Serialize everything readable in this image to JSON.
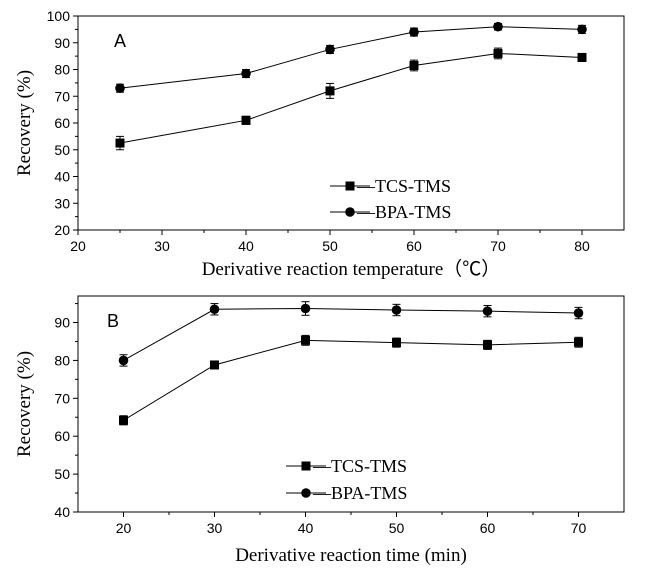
{
  "chart_data": [
    {
      "type": "line",
      "panel_label": "A",
      "xlabel": "Derivative reaction temperature（℃）",
      "ylabel": "Recovery (%)",
      "xlim": [
        20,
        85
      ],
      "ylim": [
        20,
        100
      ],
      "xticks": [
        20,
        30,
        40,
        50,
        60,
        70,
        80
      ],
      "yticks": [
        20,
        30,
        40,
        50,
        60,
        70,
        80,
        90,
        100
      ],
      "x": [
        25,
        40,
        50,
        60,
        70,
        80
      ],
      "series": [
        {
          "name": "TCS-TMS",
          "marker": "square",
          "values": [
            52.5,
            61,
            72,
            81.5,
            86,
            84.5
          ],
          "errors": [
            2.5,
            1.5,
            2.8,
            2,
            2,
            1.5
          ]
        },
        {
          "name": "BPA-TMS",
          "marker": "circle",
          "values": [
            73,
            78.5,
            87.5,
            94,
            96,
            95
          ],
          "errors": [
            1.5,
            1.5,
            1.5,
            1.5,
            1.2,
            1.5
          ]
        }
      ],
      "legend_position": "bottom-center"
    },
    {
      "type": "line",
      "panel_label": "B",
      "xlabel": "Derivative reaction time (min)",
      "ylabel": "Recovery (%)",
      "xlim": [
        15,
        75
      ],
      "ylim": [
        40,
        97
      ],
      "xticks": [
        20,
        30,
        40,
        50,
        60,
        70
      ],
      "yticks": [
        40,
        50,
        60,
        70,
        80,
        90
      ],
      "x": [
        20,
        30,
        40,
        50,
        60,
        70
      ],
      "series": [
        {
          "name": "TCS-TMS",
          "marker": "square",
          "values": [
            64.2,
            78.8,
            85.3,
            84.7,
            84.1,
            84.8
          ],
          "errors": [
            1.2,
            1.0,
            1.3,
            1.2,
            1.2,
            1.3
          ]
        },
        {
          "name": "BPA-TMS",
          "marker": "circle",
          "values": [
            80,
            93.5,
            93.7,
            93.3,
            93,
            92.5
          ],
          "errors": [
            1.5,
            1.5,
            1.8,
            1.5,
            1.5,
            1.5
          ]
        }
      ],
      "legend_position": "bottom-center"
    }
  ]
}
